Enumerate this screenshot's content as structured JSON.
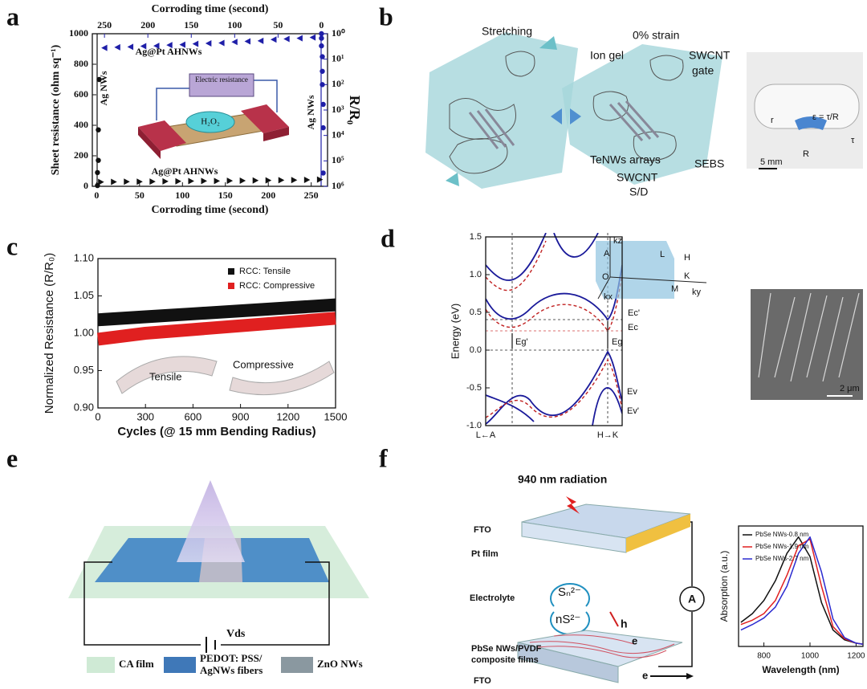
{
  "panel_labels": [
    "a",
    "b",
    "c",
    "d",
    "e",
    "f"
  ],
  "chart_data": [
    {
      "type": "scatter",
      "xlabel": "Corroding time (second)",
      "x2label": "Corroding time (second)",
      "ylabel": "Sheet resistance (ohm sq⁻¹)",
      "y2label": "R/R₀",
      "xlim": [
        -5,
        269
      ],
      "xticks": [
        0,
        50,
        100,
        150,
        200,
        250
      ],
      "x2lim": [
        264,
        -7
      ],
      "x2ticks": [
        250,
        200,
        150,
        100,
        50,
        0
      ],
      "ylim": [
        0,
        1000
      ],
      "yticks": [
        0,
        200,
        400,
        600,
        800,
        1000
      ],
      "y2lim": [
        1000000,
        1
      ],
      "y2scale": "log",
      "y2ticks": [
        {
          "value": 1,
          "label": "10⁰"
        },
        {
          "value": 10,
          "label": "10¹"
        },
        {
          "value": 100,
          "label": "10²"
        },
        {
          "value": 1000,
          "label": "10³"
        },
        {
          "value": 10000,
          "label": "10⁴"
        },
        {
          "value": 100000,
          "label": "10⁵"
        },
        {
          "value": 1000000,
          "label": "10⁶"
        }
      ],
      "series": [
        {
          "name": "Ag NWs",
          "color": "#111111",
          "marker": "circle",
          "x": [
            1,
            1,
            2,
            2,
            3
          ],
          "values": [
            5,
            90,
            170,
            370,
            700
          ]
        },
        {
          "name": "Ag@Pt AHNWs",
          "color": "#111111",
          "marker": "triangle-right",
          "x": [
            5,
            20,
            35,
            50,
            65,
            80,
            95,
            110,
            125,
            140,
            155,
            170,
            185,
            200,
            215,
            230,
            245,
            260
          ],
          "values": [
            28,
            29,
            30,
            30,
            31,
            32,
            33,
            34,
            35,
            35,
            36,
            37,
            38,
            39,
            40,
            41,
            42,
            44
          ]
        },
        {
          "name": "Ag@Pt AHNWs",
          "color": "#1f1fa8",
          "marker": "triangle-left",
          "xaxis": "x2",
          "axis": "y2",
          "x": [
            250,
            235,
            220,
            205,
            190,
            175,
            160,
            145,
            130,
            115,
            100,
            85,
            70,
            55,
            40,
            25,
            10
          ],
          "values": [
            3.6,
            3.4,
            3.3,
            3.1,
            3.0,
            2.8,
            2.7,
            2.5,
            2.4,
            2.3,
            2.1,
            2,
            1.9,
            1.7,
            1.6,
            1.5,
            1.4
          ]
        },
        {
          "name": "Ag NWs",
          "color": "#1f1fa8",
          "marker": "circle",
          "xaxis": "x2",
          "axis": "y2",
          "x": [
            0,
            0,
            0,
            -1,
            -1,
            -1,
            -2,
            -2,
            -2
          ],
          "values": [
            1,
            1.5,
            3,
            8,
            30,
            100,
            600,
            5000,
            300000
          ]
        }
      ],
      "annotations": [
        "Electric resistance",
        "H₂O₂"
      ]
    },
    {
      "type": "line",
      "xlabel": "Cycles (@ 15 mm Bending Radius)",
      "ylabel": "Normalized Resistance (R/R₀)",
      "xlim": [
        0,
        1500
      ],
      "xticks": [
        0,
        300,
        600,
        900,
        1200,
        1500
      ],
      "ylim": [
        0.9,
        1.1
      ],
      "yticks": [
        {
          "value": 0.9,
          "label": "0.90"
        },
        0.95,
        {
          "value": 1.0,
          "label": "1.00"
        },
        1.05,
        {
          "value": 1.1,
          "label": "1.10"
        }
      ],
      "x": [
        0,
        300,
        600,
        900,
        1200,
        1500
      ],
      "series": [
        {
          "name": "RCC: Tensile",
          "color": "#111111",
          "values": [
            1.018,
            1.022,
            1.026,
            1.03,
            1.034,
            1.038
          ]
        },
        {
          "name": "RCC: Compressive",
          "color": "#e02020",
          "values": [
            0.992,
            1.0,
            1.005,
            1.01,
            1.015,
            1.02
          ]
        }
      ],
      "legend": "upper right",
      "annotations": [
        "Tensile",
        "Compressive"
      ]
    },
    {
      "type": "line",
      "ylabel": "Energy (eV)",
      "ylim": [
        -1,
        1.5
      ],
      "yticks": [
        {
          "value": -1,
          "label": "-1.0"
        },
        -0.5,
        {
          "value": 0,
          "label": "0.0"
        },
        0.5,
        {
          "value": 1,
          "label": "1.0"
        },
        1.5
      ],
      "categories": [
        "L←A",
        "H→K"
      ],
      "annotations": [
        "Eg'",
        "Eg",
        "Ec'",
        "Ec",
        "Ev",
        "Ev'",
        "kz",
        "A",
        "L",
        "H",
        "K",
        "M",
        "O",
        "kx",
        "ky",
        "2 μm"
      ]
    },
    {
      "type": "line",
      "xlabel": "Wavelength (nm)",
      "ylabel": "Absorption (a.u.)",
      "xlim": [
        690,
        1230
      ],
      "xticks": [
        800,
        1000,
        1200
      ],
      "ylim": [
        0,
        1.1
      ],
      "x": [
        700,
        750,
        800,
        850,
        900,
        950,
        1000,
        1050,
        1100,
        1150,
        1200,
        1230
      ],
      "series": [
        {
          "name": "PbSe NWs-0.8 nm",
          "color": "#111111",
          "values": [
            0.22,
            0.3,
            0.42,
            0.6,
            0.85,
            1.0,
            0.82,
            0.4,
            0.15,
            0.06,
            0.03,
            0.02
          ]
        },
        {
          "name": "PbSe NWs-1.9 nm",
          "color": "#e02020",
          "values": [
            0.2,
            0.24,
            0.3,
            0.42,
            0.65,
            0.92,
            0.98,
            0.55,
            0.18,
            0.07,
            0.03,
            0.02
          ]
        },
        {
          "name": "PbSe NWs-2.7 nm",
          "color": "#2b2bd0",
          "values": [
            0.15,
            0.2,
            0.26,
            0.36,
            0.55,
            0.85,
            1.0,
            0.68,
            0.25,
            0.08,
            0.03,
            0.02
          ]
        }
      ],
      "legend": "upper left"
    }
  ],
  "panel_b": {
    "labels": [
      "Stretching",
      "0% strain",
      "Ion gel",
      "SWCNT",
      "gate",
      "TeNWs arrays",
      "SWCNT",
      "S/D",
      "SEBS"
    ],
    "inset_labels": [
      "ε = τ/R",
      "r",
      "R",
      "τ",
      "5 mm"
    ]
  },
  "panel_e": {
    "bias": "Vds",
    "legend": [
      "CA film",
      "PEDOT: PSS/",
      "AgNWs fibers",
      "ZnO NWs"
    ]
  },
  "panel_f": {
    "title": "940 nm radiation",
    "labels": [
      "FTO",
      "Pt film",
      "Electrolyte",
      "Sₙ²⁻",
      "nS²⁻",
      "A",
      "h",
      "e",
      "PbSe NWs/PVDF",
      "composite films",
      "FTO",
      "e"
    ]
  }
}
